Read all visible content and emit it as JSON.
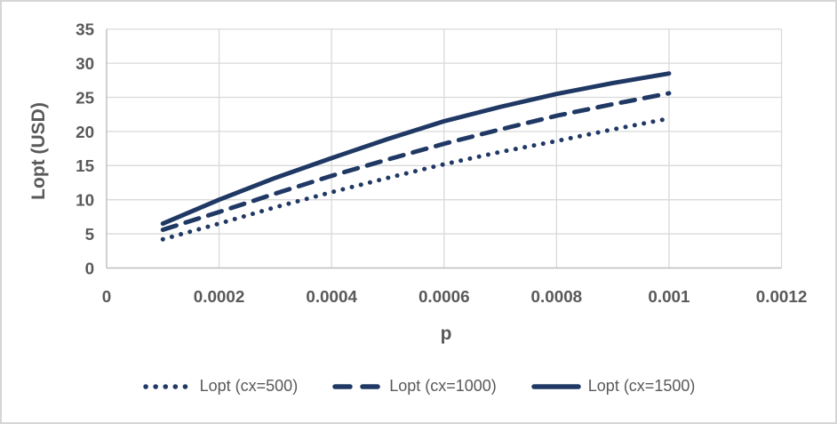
{
  "frame": {
    "background": "#ffffff",
    "border_color": "#d6d6d6"
  },
  "chart_data": {
    "type": "line",
    "title": "",
    "xlabel": "p",
    "ylabel": "Lopt (USD)",
    "xlim": [
      0,
      0.0012
    ],
    "ylim": [
      0,
      35
    ],
    "grid": true,
    "legend_position": "bottom",
    "x_tick_labels": [
      "0",
      "0.0002",
      "0.0004",
      "0.0006",
      "0.0008",
      "0.001",
      "0.0012"
    ],
    "x_tick_values": [
      0,
      0.0002,
      0.0004,
      0.0006,
      0.0008,
      0.001,
      0.0012
    ],
    "y_tick_labels": [
      "0",
      "5",
      "10",
      "15",
      "20",
      "25",
      "30",
      "35"
    ],
    "y_tick_values": [
      0,
      5,
      10,
      15,
      20,
      25,
      30,
      35
    ],
    "x": [
      0.0001,
      0.0002,
      0.0003,
      0.0004,
      0.0005,
      0.0006,
      0.0007,
      0.0008,
      0.0009,
      0.001
    ],
    "series": [
      {
        "name": "Lopt (cx=500)",
        "line_style": "dotted",
        "color": "#1F3864",
        "values": [
          4.2,
          6.5,
          8.9,
          11.1,
          13.2,
          15.2,
          17.0,
          18.6,
          20.3,
          21.9
        ]
      },
      {
        "name": "Lopt (cx=1000)",
        "line_style": "dashed",
        "color": "#1F3864",
        "values": [
          5.6,
          8.2,
          10.9,
          13.5,
          15.9,
          18.2,
          20.3,
          22.3,
          24.0,
          25.6
        ]
      },
      {
        "name": "Lopt (cx=1500)",
        "line_style": "solid",
        "color": "#1F3864",
        "values": [
          6.5,
          10.0,
          13.2,
          16.1,
          18.9,
          21.5,
          23.6,
          25.5,
          27.1,
          28.5
        ]
      }
    ],
    "colors": {
      "gridline": "#D9D9D9",
      "axis_line": "#BFBFBF",
      "text": "#595959",
      "series": "#1F3864"
    }
  }
}
